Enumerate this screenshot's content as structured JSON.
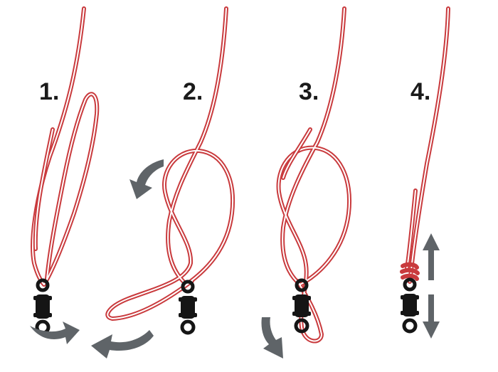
{
  "steps": [
    {
      "number": "1."
    },
    {
      "number": "2."
    },
    {
      "number": "3."
    },
    {
      "number": "4."
    }
  ],
  "colors": {
    "line": "#c93a3d",
    "swivel": "#151515",
    "arrow": "#5f6468",
    "background": "#ffffff"
  },
  "icons": {
    "swivel": "barrel-swivel-icon",
    "arrow": "direction-arrow-icon"
  }
}
